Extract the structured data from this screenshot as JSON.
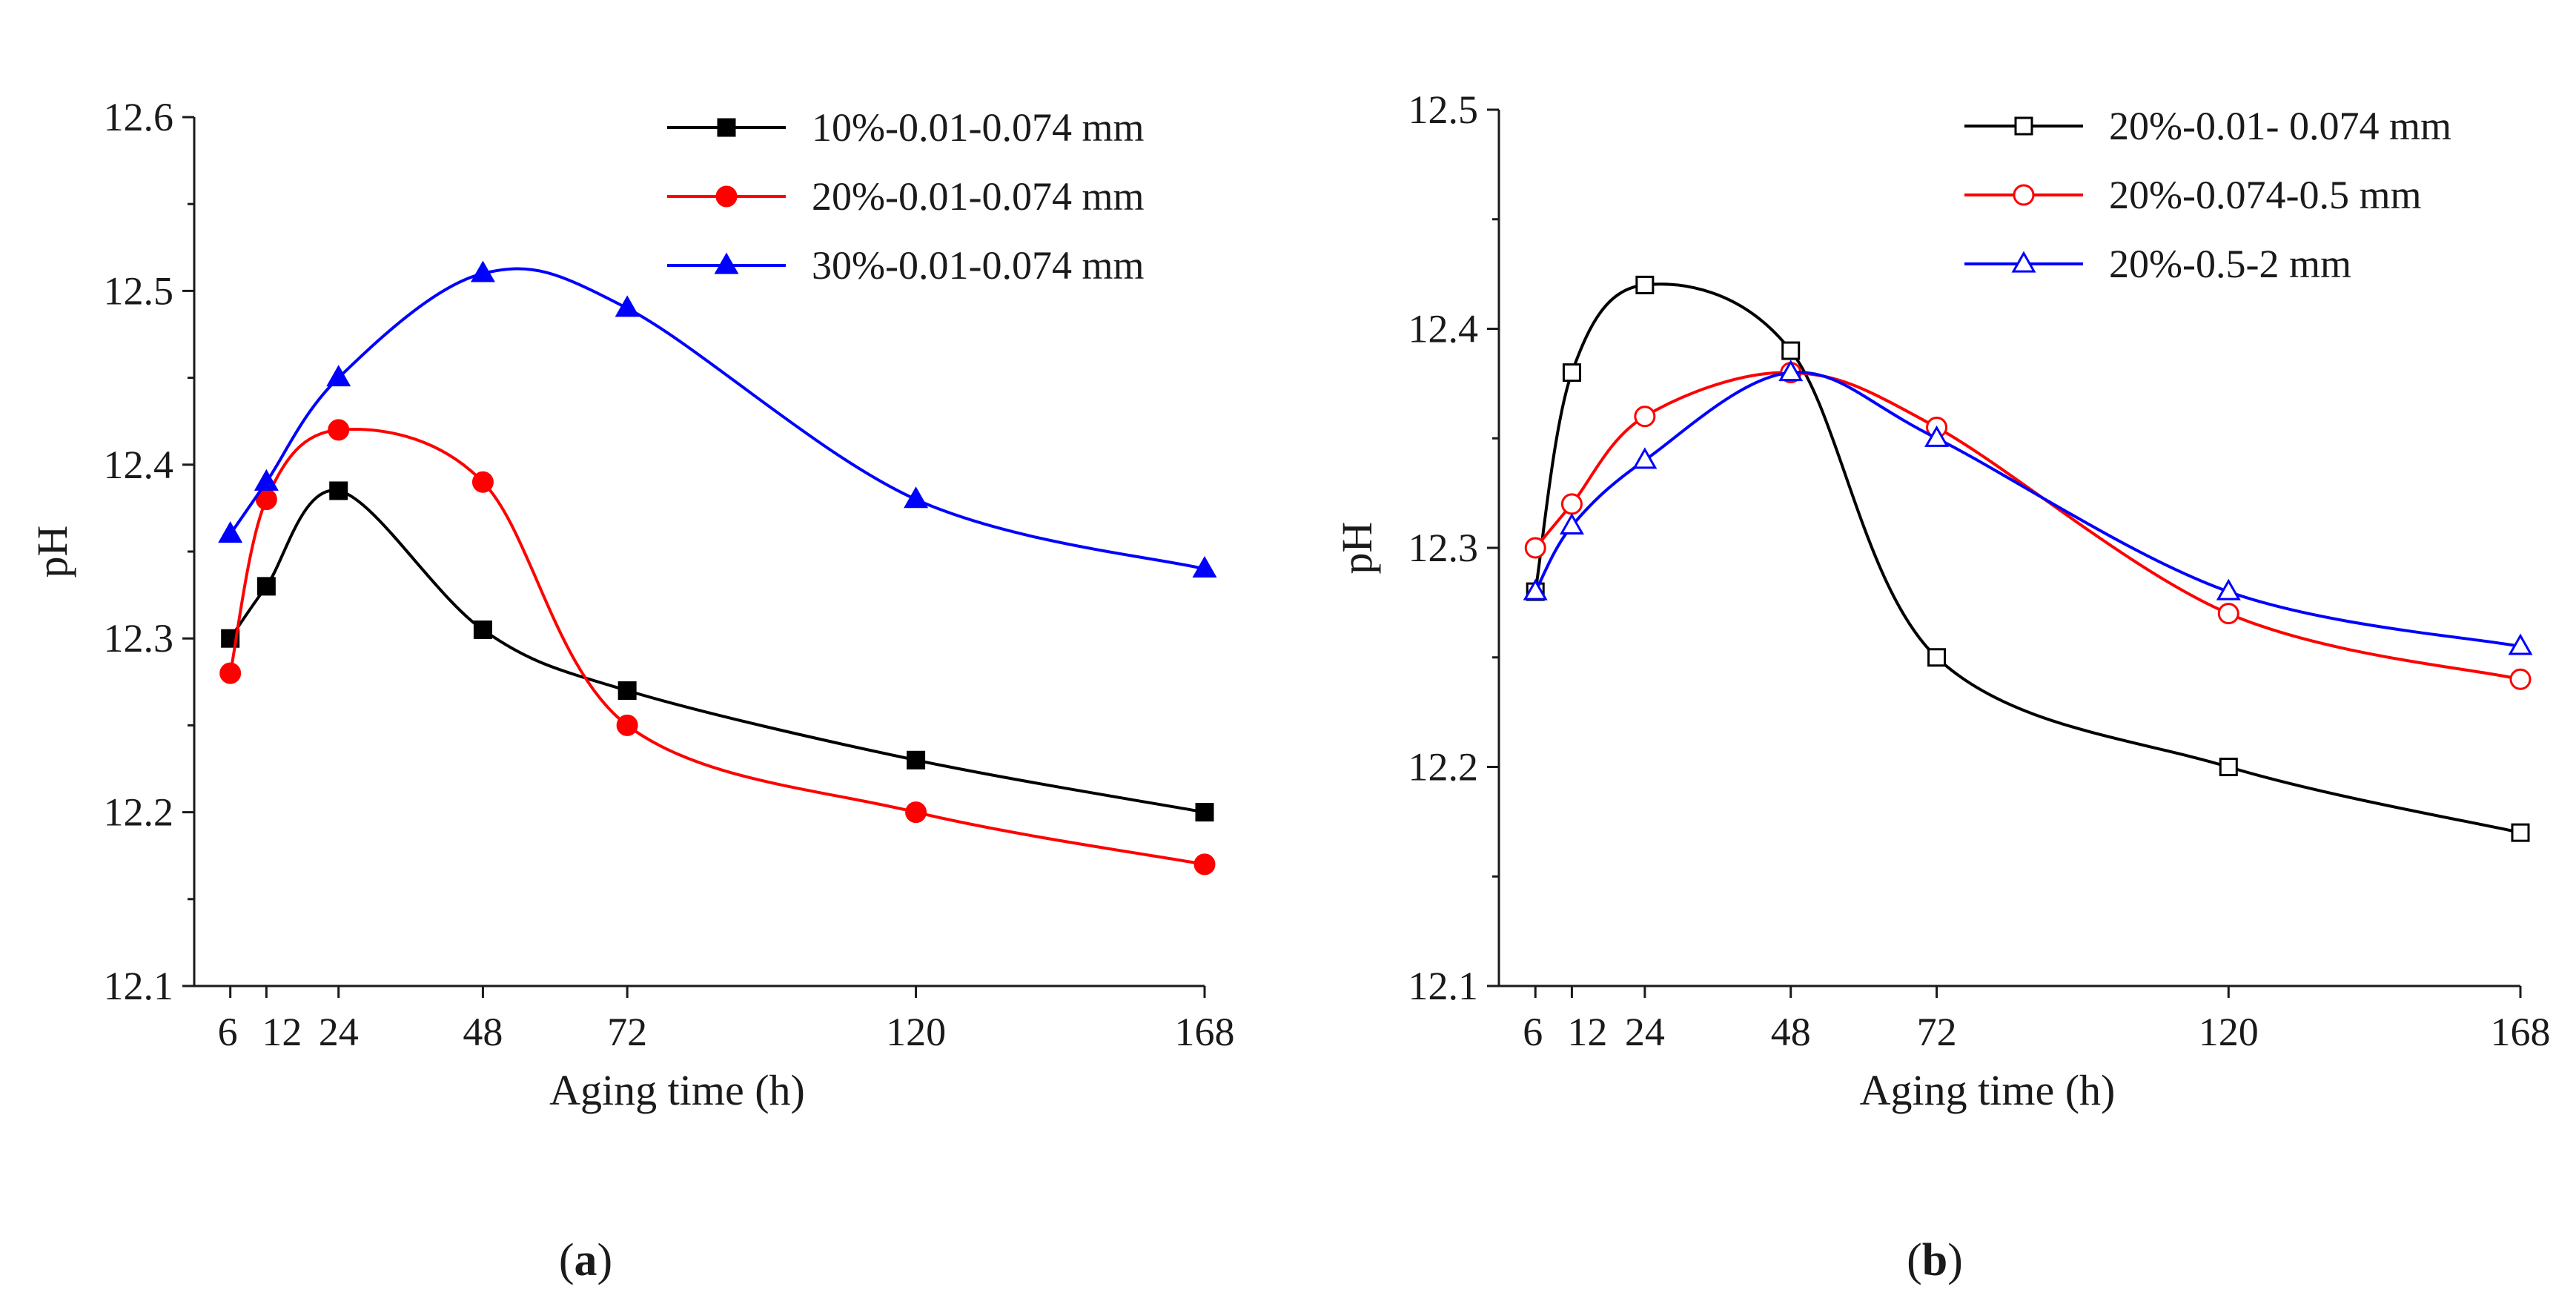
{
  "chart_data": [
    {
      "type": "line",
      "panel_label": "a",
      "xlabel": "Aging time (h)",
      "ylabel": "pH",
      "xlim": [
        0,
        168
      ],
      "ylim": [
        12.1,
        12.6
      ],
      "x_ticks": [
        6,
        12,
        24,
        48,
        72,
        120,
        168
      ],
      "x_tick_labels": [
        "6",
        "12",
        "24",
        "48",
        "72",
        "120",
        "168"
      ],
      "y_ticks": [
        12.1,
        12.2,
        12.3,
        12.4,
        12.5,
        12.6
      ],
      "y_tick_labels": [
        "12.1",
        "12.2",
        "12.3",
        "12.4",
        "12.5",
        "12.6"
      ],
      "legend_position": "top-right",
      "series": [
        {
          "name": "10%-0.01-0.074 mm",
          "color": "#000000",
          "marker": "square",
          "filled": true,
          "x": [
            6,
            12,
            24,
            48,
            72,
            120,
            168
          ],
          "values": [
            12.3,
            12.33,
            12.385,
            12.305,
            12.27,
            12.23,
            12.2
          ]
        },
        {
          "name": "20%-0.01-0.074 mm",
          "color": "#ff0000",
          "marker": "circle",
          "filled": true,
          "x": [
            6,
            12,
            24,
            48,
            72,
            120,
            168
          ],
          "values": [
            12.28,
            12.38,
            12.42,
            12.39,
            12.25,
            12.2,
            12.17
          ]
        },
        {
          "name": "30%-0.01-0.074 mm",
          "color": "#0000ff",
          "marker": "triangle",
          "filled": true,
          "x": [
            6,
            12,
            24,
            48,
            72,
            120,
            168
          ],
          "values": [
            12.36,
            12.39,
            12.45,
            12.51,
            12.49,
            12.38,
            12.34
          ]
        }
      ]
    },
    {
      "type": "line",
      "panel_label": "b",
      "xlabel": "Aging time (h)",
      "ylabel": "pH",
      "xlim": [
        0,
        168
      ],
      "ylim": [
        12.1,
        12.5
      ],
      "x_ticks": [
        6,
        12,
        24,
        48,
        72,
        120,
        168
      ],
      "x_tick_labels": [
        "6",
        "12",
        "24",
        "48",
        "72",
        "120",
        "168"
      ],
      "y_ticks": [
        12.1,
        12.2,
        12.3,
        12.4,
        12.5
      ],
      "y_tick_labels": [
        "12.1",
        "12.2",
        "12.3",
        "12.4",
        "12.5"
      ],
      "legend_position": "top-right",
      "series": [
        {
          "name": "20%-0.01- 0.074 mm",
          "color": "#000000",
          "marker": "square",
          "filled": false,
          "x": [
            6,
            12,
            24,
            48,
            72,
            120,
            168
          ],
          "values": [
            12.28,
            12.38,
            12.42,
            12.39,
            12.25,
            12.2,
            12.17
          ]
        },
        {
          "name": "20%-0.074-0.5 mm",
          "color": "#ff0000",
          "marker": "circle",
          "filled": false,
          "x": [
            6,
            12,
            24,
            48,
            72,
            120,
            168
          ],
          "values": [
            12.3,
            12.32,
            12.36,
            12.38,
            12.355,
            12.27,
            12.24
          ]
        },
        {
          "name": "20%-0.5-2 mm",
          "color": "#0000ff",
          "marker": "triangle",
          "filled": false,
          "x": [
            6,
            12,
            24,
            48,
            72,
            120,
            168
          ],
          "values": [
            12.28,
            12.31,
            12.34,
            12.38,
            12.35,
            12.28,
            12.255
          ]
        }
      ]
    }
  ],
  "captions": {
    "a": "(a)",
    "b": "(b)"
  }
}
